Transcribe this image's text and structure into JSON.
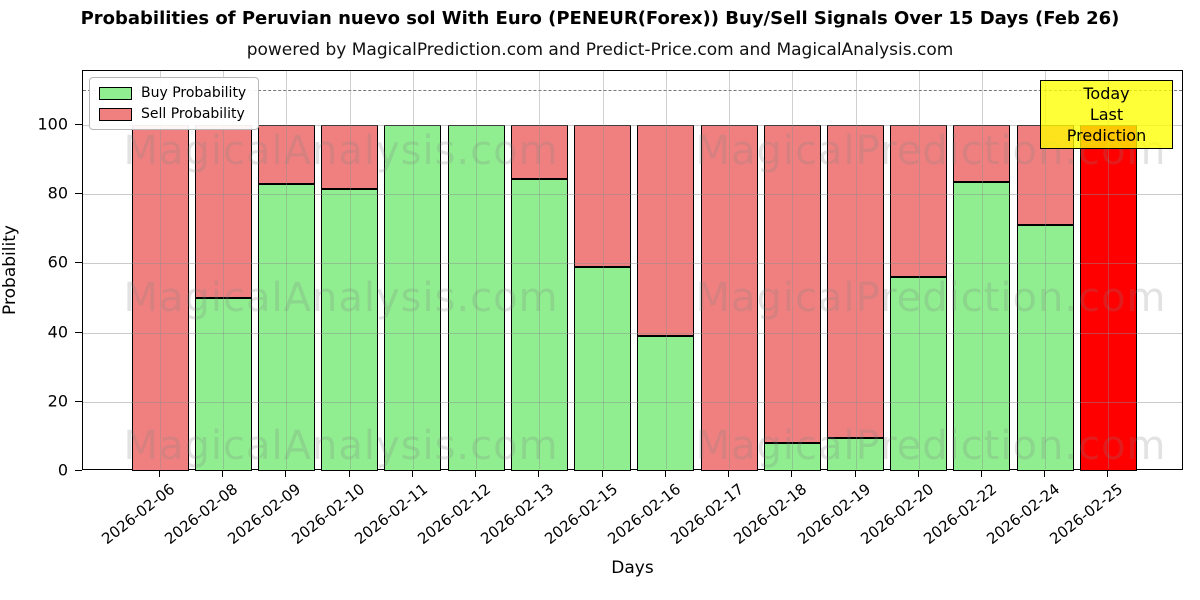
{
  "chart_data": {
    "type": "bar",
    "stacked": true,
    "title": "Probabilities of Peruvian nuevo sol With Euro (PENEUR(Forex)) Buy/Sell Signals Over 15 Days (Feb 26)",
    "subtitle": "powered by MagicalPrediction.com and Predict-Price.com and MagicalAnalysis.com",
    "xlabel": "Days",
    "ylabel": "Probability",
    "ylim": [
      0,
      115.6
    ],
    "yticks": [
      0,
      20,
      40,
      60,
      80,
      100
    ],
    "dashed_line_y": 110,
    "grid": true,
    "legend_position": "upper-left",
    "legend": [
      {
        "label": "Buy Probability",
        "color": "#90ee90"
      },
      {
        "label": "Sell Probability",
        "color": "#f08080"
      }
    ],
    "categories": [
      "2026-02-06",
      "2026-02-08",
      "2026-02-09",
      "2026-02-10",
      "2026-02-11",
      "2026-02-12",
      "2026-02-13",
      "2026-02-15",
      "2026-02-16",
      "2026-02-17",
      "2026-02-18",
      "2026-02-19",
      "2026-02-20",
      "2026-02-22",
      "2026-02-24",
      "2026-02-25"
    ],
    "series": [
      {
        "name": "Buy Probability",
        "color": "#90ee90",
        "values": [
          0,
          50,
          83,
          81.5,
          100,
          100,
          84.5,
          59,
          39,
          0,
          8,
          9.5,
          56,
          83.5,
          71,
          0
        ]
      },
      {
        "name": "Sell Probability",
        "color": "#f08080",
        "values": [
          100,
          50,
          17,
          18.5,
          0,
          0,
          15.5,
          41,
          61,
          100,
          92,
          90.5,
          44,
          16.5,
          29,
          100
        ]
      }
    ],
    "today_bar": {
      "category": "2026-02-25",
      "color": "#ff0000",
      "value": 100
    },
    "annotation": {
      "lines": [
        "Today",
        "Last Prediction"
      ],
      "bg_color": "#ffff00"
    },
    "watermarks": [
      "MagicalAnalysis.com",
      "MagicalPrediction.com"
    ],
    "colors": {
      "buy": "#90ee90",
      "sell": "#f08080",
      "today": "#ff0000",
      "annotation_bg": "#ffff00"
    }
  }
}
